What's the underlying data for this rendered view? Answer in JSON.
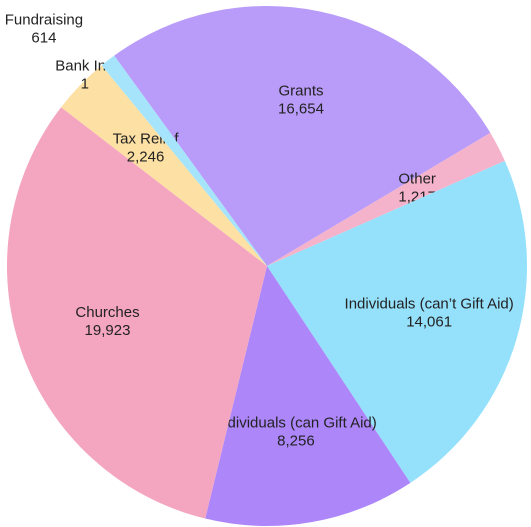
{
  "chart_data": {
    "type": "pie",
    "categories": [
      "Grants",
      "Other",
      "Individuals (can’t Gift Aid)",
      "Individuals (can Gift Aid)",
      "Churches",
      "Tax Relief",
      "Bank Int.",
      "Fundraising"
    ],
    "values": [
      16654,
      1217,
      14061,
      8256,
      19923,
      2246,
      1,
      614
    ],
    "value_labels": [
      "16,654",
      "1,217",
      "14,061",
      "8,256",
      "19,923",
      "2,246",
      "1",
      "614"
    ],
    "colors": [
      "#b99cfa",
      "#f5b3cb",
      "#95e1fb",
      "#ad86fa",
      "#f4a6c1",
      "#fde0a3",
      "#bdebf8",
      "#a6e4fb"
    ]
  }
}
